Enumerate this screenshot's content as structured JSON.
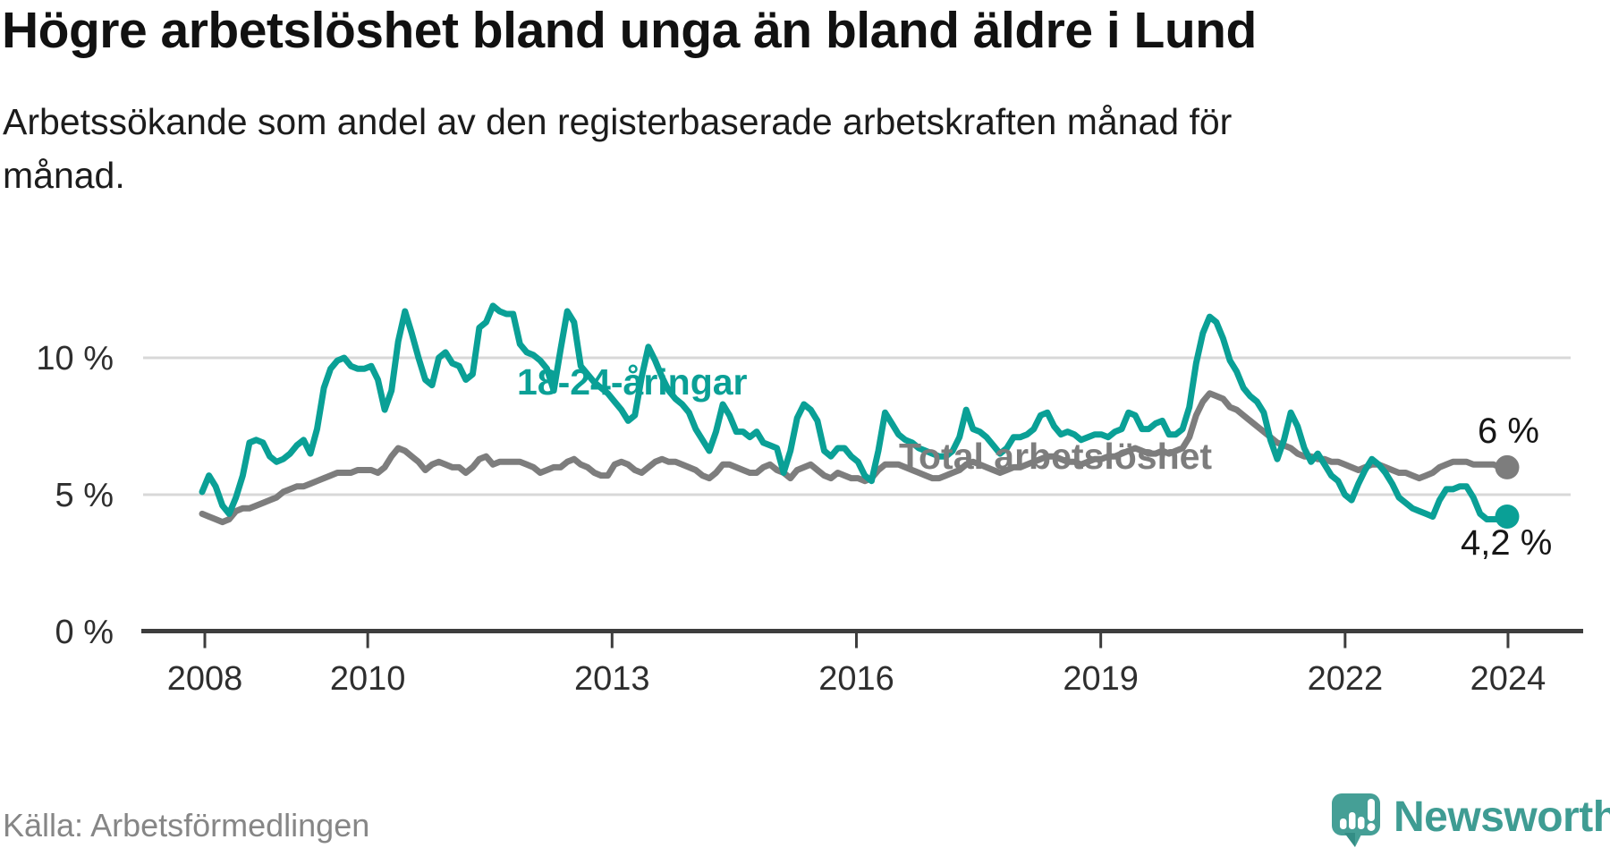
{
  "header": {
    "title": "Högre arbetslöshet bland unga än bland äldre i Lund",
    "subtitle": "Arbetssökande som andel av den registerbaserade arbetskraften månad för månad."
  },
  "series_labels": {
    "youth": "18-24-åringar",
    "total": "Total arbetslöshet"
  },
  "end_labels": {
    "total": "6 %",
    "youth": "4,2 %"
  },
  "footer": {
    "source": "Källa: Arbetsförmedlingen",
    "brand": "Newsworthy"
  },
  "colors": {
    "youth_line": "#0aa096",
    "total_line": "#7d7d7d",
    "grid": "#d8d8d8",
    "axis": "#3d3d3d",
    "tick_text": "#2e2e2e",
    "logo": "#459f96",
    "logo_text": "#3f9c93"
  },
  "chart_data": {
    "type": "line",
    "title": "Högre arbetslöshet bland unga än bland äldre i Lund",
    "subtitle": "Arbetssökande som andel av den registerbaserade arbetskraften månad för månad.",
    "unit": "percent of register-based labour force",
    "x_start": "2008-01",
    "x_end": "2024-02",
    "x_frequency": "monthly",
    "ylim": [
      0,
      12.5
    ],
    "grid": "horizontal",
    "legend_position": "inline-labels",
    "y_ticks": [
      {
        "label": "0 %",
        "value": 0
      },
      {
        "label": "5 %",
        "value": 5
      },
      {
        "label": "10 %",
        "value": 10
      }
    ],
    "x_ticks": [
      {
        "label": "2008",
        "year": 2008
      },
      {
        "label": "2010",
        "year": 2010
      },
      {
        "label": "2013",
        "year": 2013
      },
      {
        "label": "2016",
        "year": 2016
      },
      {
        "label": "2019",
        "year": 2019
      },
      {
        "label": "2022",
        "year": 2022
      },
      {
        "label": "2024",
        "year": 2024
      }
    ],
    "series": [
      {
        "name": "Total arbetslöshet",
        "color": "#7d7d7d",
        "end_value_label": "6 %",
        "values": [
          4.3,
          4.2,
          4.1,
          4.0,
          4.1,
          4.4,
          4.5,
          4.5,
          4.6,
          4.7,
          4.8,
          4.9,
          5.1,
          5.2,
          5.3,
          5.3,
          5.4,
          5.5,
          5.6,
          5.7,
          5.8,
          5.8,
          5.8,
          5.9,
          5.9,
          5.9,
          5.8,
          6.0,
          6.4,
          6.7,
          6.6,
          6.4,
          6.2,
          5.9,
          6.1,
          6.2,
          6.1,
          6.0,
          6.0,
          5.8,
          6.0,
          6.3,
          6.4,
          6.1,
          6.2,
          6.2,
          6.2,
          6.2,
          6.1,
          6.0,
          5.8,
          5.9,
          6.0,
          6.0,
          6.2,
          6.3,
          6.1,
          6.0,
          5.8,
          5.7,
          5.7,
          6.1,
          6.2,
          6.1,
          5.9,
          5.8,
          6.0,
          6.2,
          6.3,
          6.2,
          6.2,
          6.1,
          6.0,
          5.9,
          5.7,
          5.6,
          5.8,
          6.1,
          6.1,
          6.0,
          5.9,
          5.8,
          5.8,
          6.0,
          6.1,
          5.9,
          5.8,
          5.6,
          5.9,
          6.0,
          6.1,
          5.9,
          5.7,
          5.6,
          5.8,
          5.7,
          5.6,
          5.6,
          5.5,
          5.6,
          5.9,
          6.1,
          6.1,
          6.1,
          6.0,
          5.9,
          5.8,
          5.7,
          5.6,
          5.6,
          5.7,
          5.8,
          5.9,
          6.1,
          6.2,
          6.1,
          6.0,
          5.9,
          5.8,
          5.9,
          6.0,
          6.0,
          6.1,
          6.2,
          6.3,
          6.4,
          6.4,
          6.3,
          6.2,
          6.2,
          6.1,
          6.2,
          6.3,
          6.3,
          6.4,
          6.4,
          6.5,
          6.6,
          6.7,
          6.6,
          6.5,
          6.5,
          6.6,
          6.5,
          6.6,
          6.7,
          7.1,
          7.9,
          8.4,
          8.7,
          8.6,
          8.5,
          8.2,
          8.1,
          7.9,
          7.7,
          7.5,
          7.3,
          7.1,
          6.9,
          6.8,
          6.7,
          6.5,
          6.4,
          6.4,
          6.3,
          6.3,
          6.2,
          6.2,
          6.1,
          6.0,
          5.9,
          6.0,
          6.1,
          6.1,
          6.0,
          5.9,
          5.8,
          5.8,
          5.7,
          5.6,
          5.7,
          5.8,
          6.0,
          6.1,
          6.2,
          6.2,
          6.2,
          6.1,
          6.1,
          6.1,
          6.1,
          6.0,
          6.0
        ]
      },
      {
        "name": "18-24-åringar",
        "color": "#0aa096",
        "end_value_label": "4,2 %",
        "values": [
          5.1,
          5.7,
          5.3,
          4.6,
          4.3,
          4.9,
          5.7,
          6.9,
          7.0,
          6.9,
          6.4,
          6.2,
          6.3,
          6.5,
          6.8,
          7.0,
          6.5,
          7.4,
          8.9,
          9.6,
          9.9,
          10.0,
          9.7,
          9.6,
          9.6,
          9.7,
          9.2,
          8.1,
          8.8,
          10.6,
          11.7,
          10.9,
          10.0,
          9.2,
          9.0,
          10.0,
          10.2,
          9.8,
          9.7,
          9.2,
          9.4,
          11.1,
          11.3,
          11.9,
          11.7,
          11.6,
          11.6,
          10.5,
          10.2,
          10.1,
          9.9,
          9.6,
          8.8,
          10.3,
          11.7,
          11.3,
          9.7,
          9.4,
          9.1,
          8.9,
          8.7,
          8.4,
          8.1,
          7.7,
          7.9,
          9.3,
          10.4,
          9.9,
          9.3,
          8.8,
          8.5,
          8.3,
          8.0,
          7.4,
          7.0,
          6.6,
          7.3,
          8.3,
          7.9,
          7.3,
          7.3,
          7.1,
          7.3,
          6.9,
          6.8,
          6.7,
          5.8,
          6.6,
          7.8,
          8.3,
          8.1,
          7.7,
          6.6,
          6.4,
          6.7,
          6.7,
          6.4,
          6.2,
          5.7,
          5.5,
          6.6,
          8.0,
          7.6,
          7.2,
          7.0,
          6.9,
          6.7,
          6.6,
          6.5,
          6.4,
          6.4,
          6.6,
          7.1,
          8.1,
          7.4,
          7.3,
          7.1,
          6.8,
          6.5,
          6.7,
          7.1,
          7.1,
          7.2,
          7.4,
          7.9,
          8.0,
          7.5,
          7.2,
          7.3,
          7.2,
          7.0,
          7.1,
          7.2,
          7.2,
          7.1,
          7.3,
          7.4,
          8.0,
          7.9,
          7.4,
          7.4,
          7.6,
          7.7,
          7.2,
          7.2,
          7.4,
          8.2,
          9.8,
          10.9,
          11.5,
          11.3,
          10.7,
          9.9,
          9.5,
          8.9,
          8.6,
          8.4,
          8.0,
          7.0,
          6.3,
          7.0,
          8.0,
          7.5,
          6.7,
          6.2,
          6.5,
          6.1,
          5.7,
          5.5,
          5.0,
          4.8,
          5.4,
          5.9,
          6.3,
          6.1,
          5.8,
          5.4,
          4.9,
          4.7,
          4.5,
          4.4,
          4.3,
          4.2,
          4.8,
          5.2,
          5.2,
          5.3,
          5.3,
          4.9,
          4.3,
          4.1,
          4.1,
          4.1,
          4.2
        ]
      }
    ]
  }
}
